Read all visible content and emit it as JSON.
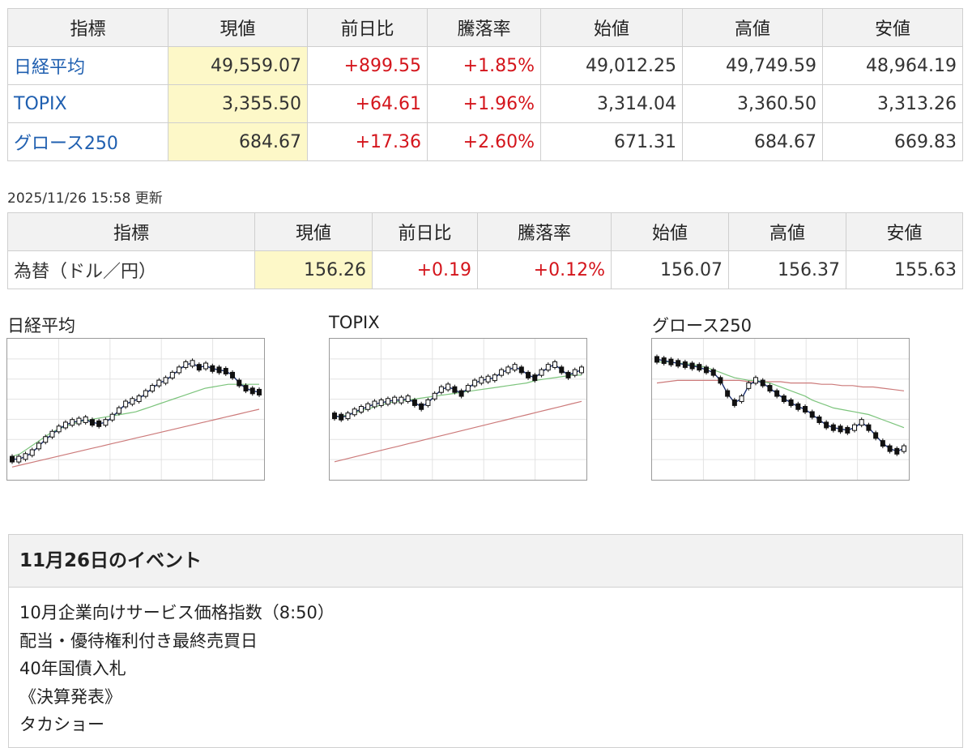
{
  "markets": {
    "headers": [
      "指標",
      "現値",
      "前日比",
      "騰落率",
      "始値",
      "高値",
      "安値"
    ],
    "rows": [
      {
        "name": "日経平均",
        "current": "49,559.07",
        "change": "+899.55",
        "rate": "+1.85%",
        "open": "49,012.25",
        "high": "49,749.59",
        "low": "48,964.19"
      },
      {
        "name": "TOPIX",
        "current": "3,355.50",
        "change": "+64.61",
        "rate": "+1.96%",
        "open": "3,314.04",
        "high": "3,360.50",
        "low": "3,313.26"
      },
      {
        "name": "グロース250",
        "current": "684.67",
        "change": "+17.36",
        "rate": "+2.60%",
        "open": "671.31",
        "high": "684.67",
        "low": "669.83"
      }
    ]
  },
  "fx": {
    "updated": "2025/11/26 15:58 更新",
    "headers": [
      "指標",
      "現値",
      "前日比",
      "騰落率",
      "始値",
      "高値",
      "安値"
    ],
    "row": {
      "name": "為替（ドル／円）",
      "current": "156.26",
      "change": "+0.19",
      "rate": "+0.12%",
      "open": "156.07",
      "high": "156.37",
      "low": "155.63"
    }
  },
  "charts": {
    "nikkei": {
      "title": "日経平均"
    },
    "topix": {
      "title": "TOPIX"
    },
    "growth": {
      "title": "グロース250"
    }
  },
  "chart_data": [
    {
      "type": "line",
      "title": "日経平均",
      "grid": true,
      "series": [
        {
          "values": [
            0.12,
            0.12,
            0.14,
            0.17,
            0.22,
            0.27,
            0.31,
            0.35,
            0.38,
            0.4,
            0.41,
            0.42,
            0.4,
            0.39,
            0.4,
            0.44,
            0.49,
            0.54,
            0.56,
            0.58,
            0.62,
            0.66,
            0.7,
            0.72,
            0.76,
            0.8,
            0.84,
            0.85,
            0.82,
            0.83,
            0.81,
            0.8,
            0.79,
            0.76,
            0.7,
            0.66,
            0.64,
            0.63
          ]
        },
        {
          "values": [
            0.14,
            0.16,
            0.2,
            0.24,
            0.28,
            0.32,
            0.35,
            0.37,
            0.39,
            0.41,
            0.42,
            0.43,
            0.44,
            0.45,
            0.46,
            0.47,
            0.48,
            0.5,
            0.52,
            0.54,
            0.56,
            0.58,
            0.6,
            0.62,
            0.64,
            0.66,
            0.67,
            0.68,
            0.69,
            0.69,
            0.69,
            0.69,
            0.69
          ]
        },
        {
          "values": [
            0.06,
            0.08,
            0.1,
            0.12,
            0.14,
            0.16,
            0.18,
            0.2,
            0.22,
            0.24,
            0.26,
            0.28,
            0.3,
            0.32,
            0.34,
            0.36,
            0.38,
            0.4,
            0.42,
            0.44,
            0.46,
            0.48,
            0.5
          ]
        }
      ]
    },
    {
      "type": "line",
      "title": "TOPIX",
      "grid": true,
      "series": [
        {
          "values": [
            0.45,
            0.44,
            0.45,
            0.48,
            0.5,
            0.52,
            0.54,
            0.55,
            0.56,
            0.57,
            0.57,
            0.58,
            0.55,
            0.52,
            0.55,
            0.6,
            0.65,
            0.67,
            0.65,
            0.62,
            0.66,
            0.7,
            0.72,
            0.73,
            0.74,
            0.78,
            0.8,
            0.82,
            0.8,
            0.76,
            0.74,
            0.78,
            0.82,
            0.84,
            0.8,
            0.76,
            0.78,
            0.8
          ]
        },
        {
          "values": [
            0.44,
            0.45,
            0.47,
            0.49,
            0.51,
            0.53,
            0.55,
            0.56,
            0.57,
            0.58,
            0.59,
            0.6,
            0.61,
            0.62,
            0.63,
            0.64,
            0.65,
            0.66,
            0.67,
            0.68,
            0.69,
            0.7,
            0.72,
            0.73,
            0.74,
            0.75,
            0.76,
            0.76
          ]
        },
        {
          "values": [
            0.1,
            0.12,
            0.14,
            0.16,
            0.18,
            0.2,
            0.22,
            0.24,
            0.26,
            0.28,
            0.3,
            0.32,
            0.34,
            0.36,
            0.38,
            0.4,
            0.42,
            0.44,
            0.46,
            0.48,
            0.5,
            0.52,
            0.54,
            0.56
          ]
        }
      ]
    },
    {
      "type": "line",
      "title": "グロース250",
      "grid": true,
      "series": [
        {
          "values": [
            0.88,
            0.87,
            0.86,
            0.85,
            0.84,
            0.83,
            0.82,
            0.8,
            0.78,
            0.72,
            0.62,
            0.55,
            0.58,
            0.68,
            0.72,
            0.7,
            0.66,
            0.62,
            0.58,
            0.55,
            0.52,
            0.5,
            0.46,
            0.42,
            0.38,
            0.36,
            0.35,
            0.34,
            0.36,
            0.4,
            0.36,
            0.3,
            0.24,
            0.2,
            0.18,
            0.2
          ]
        },
        {
          "values": [
            0.86,
            0.86,
            0.86,
            0.85,
            0.85,
            0.84,
            0.83,
            0.82,
            0.8,
            0.78,
            0.76,
            0.74,
            0.73,
            0.72,
            0.72,
            0.71,
            0.7,
            0.68,
            0.66,
            0.64,
            0.62,
            0.6,
            0.57,
            0.55,
            0.53,
            0.51,
            0.5,
            0.49,
            0.48,
            0.47,
            0.46,
            0.44,
            0.42,
            0.4,
            0.38,
            0.36
          ]
        },
        {
          "values": [
            0.7,
            0.71,
            0.72,
            0.72,
            0.72,
            0.72,
            0.72,
            0.72,
            0.72,
            0.71,
            0.71,
            0.71,
            0.71,
            0.7,
            0.7,
            0.7,
            0.69,
            0.69,
            0.68,
            0.68,
            0.67,
            0.67,
            0.66,
            0.65,
            0.64
          ]
        }
      ]
    }
  ],
  "events": {
    "title": "11月26日のイベント",
    "items": [
      "10月企業向けサービス価格指数（8:50）",
      "配当・優待権利付き最終売買日",
      "40年国債入札",
      "《決算発表》",
      "タカショー"
    ]
  },
  "colors": {
    "up": "#d4151c",
    "link": "#1f5fb0",
    "current_bg": "#fdf8c8",
    "ma_short": "#1b2f6e",
    "ma_mid": "#7cc47c",
    "ma_long": "#cc7a7a"
  }
}
